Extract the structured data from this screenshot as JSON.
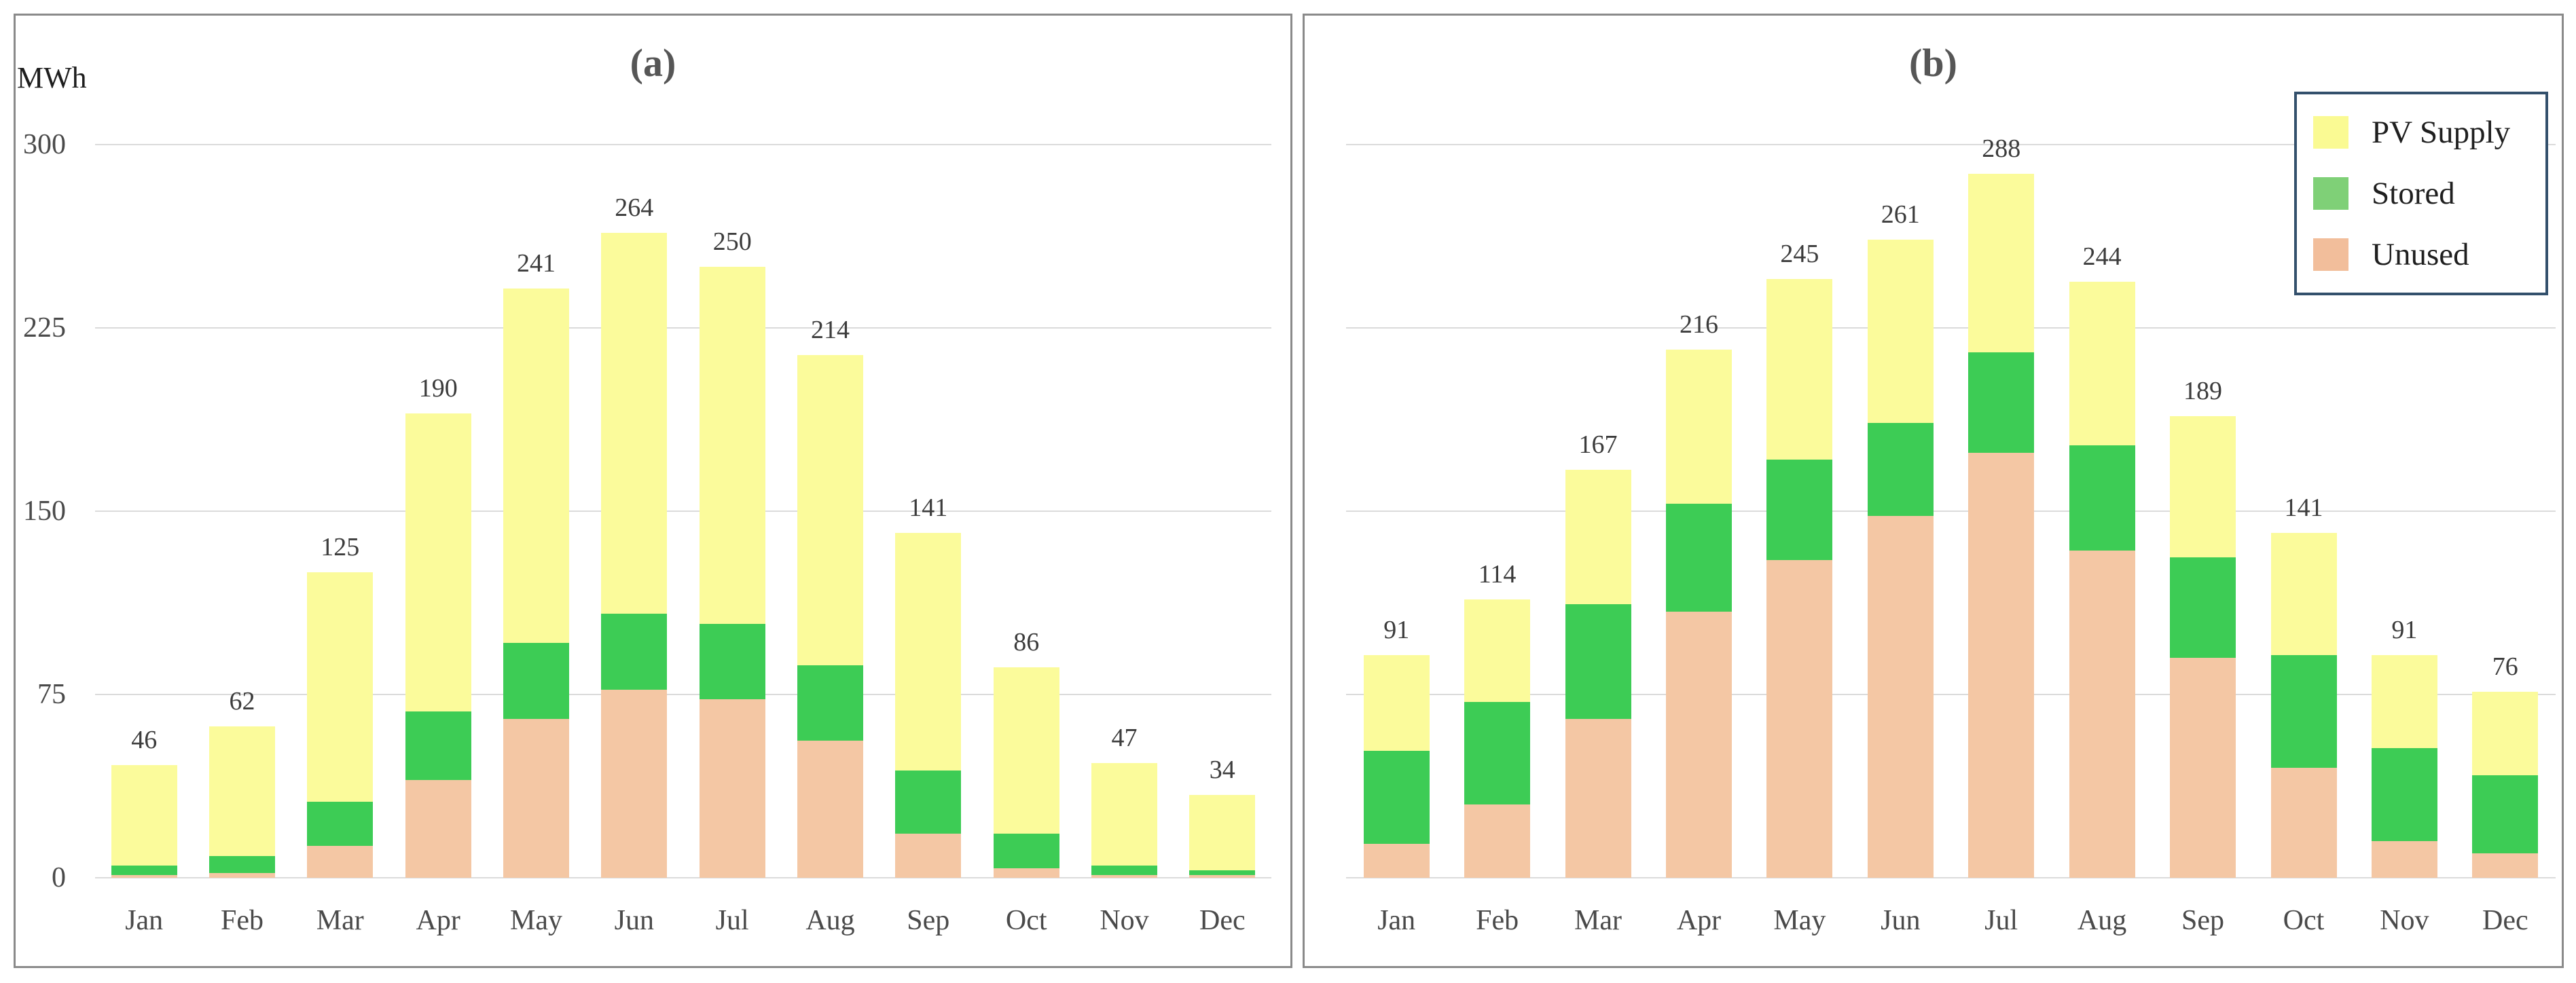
{
  "unit_label": "MWh",
  "chart_data": [
    {
      "type": "bar",
      "stacked": true,
      "title": "(a)",
      "ylabel": "MWh",
      "ylim": [
        0,
        300
      ],
      "yticks": [
        0,
        75,
        150,
        225,
        300
      ],
      "grid": true,
      "show_y_tick_labels": true,
      "categories": [
        "Jan",
        "Feb",
        "Mar",
        "Apr",
        "May",
        "Jun",
        "Jul",
        "Aug",
        "Sep",
        "Oct",
        "Nov",
        "Dec"
      ],
      "series": [
        {
          "name": "Unused",
          "color": "#F4C7A4",
          "values": [
            1,
            2,
            13,
            40,
            65,
            77,
            73,
            56,
            18,
            4,
            1,
            1
          ]
        },
        {
          "name": "Stored",
          "color": "#3DCC55",
          "values": [
            4,
            7,
            18,
            28,
            31,
            31,
            31,
            31,
            26,
            14,
            4,
            2
          ]
        },
        {
          "name": "PV Supply",
          "color": "#FBFB9B",
          "values": [
            41,
            53,
            94,
            122,
            145,
            156,
            146,
            127,
            97,
            68,
            42,
            31
          ]
        }
      ],
      "totals": [
        46,
        62,
        125,
        190,
        241,
        264,
        250,
        214,
        141,
        86,
        47,
        34
      ]
    },
    {
      "type": "bar",
      "stacked": true,
      "title": "(b)",
      "ylabel": "",
      "ylim": [
        0,
        300
      ],
      "yticks": [
        0,
        75,
        150,
        225,
        300
      ],
      "grid": true,
      "show_y_tick_labels": false,
      "categories": [
        "Jan",
        "Feb",
        "Mar",
        "Apr",
        "May",
        "Jun",
        "Jul",
        "Aug",
        "Sep",
        "Oct",
        "Nov",
        "Dec"
      ],
      "series": [
        {
          "name": "Unused",
          "color": "#F4C7A4",
          "values": [
            14,
            30,
            65,
            109,
            130,
            148,
            174,
            134,
            90,
            45,
            15,
            10
          ]
        },
        {
          "name": "Stored",
          "color": "#3DCC55",
          "values": [
            38,
            42,
            47,
            44,
            41,
            38,
            41,
            43,
            41,
            46,
            38,
            32
          ]
        },
        {
          "name": "PV Supply",
          "color": "#FBFB9B",
          "values": [
            39,
            42,
            55,
            63,
            74,
            75,
            73,
            67,
            58,
            50,
            38,
            34
          ]
        }
      ],
      "totals": [
        91,
        114,
        167,
        216,
        245,
        261,
        288,
        244,
        189,
        141,
        91,
        76
      ]
    }
  ],
  "legend": {
    "position": "top-right",
    "entries": [
      {
        "label": "PV Supply",
        "color": "#FAFA93"
      },
      {
        "label": "Stored",
        "color": "#7FD077"
      },
      {
        "label": "Unused",
        "color": "#F2BE9B"
      }
    ]
  },
  "colors": {
    "grid": "#DBDBDB",
    "panel_border": "#8A8A8A",
    "legend_border": "#33506C",
    "title_text": "#565656",
    "label_text": "#3C3C3C",
    "axis_text": "#4A4A4A"
  }
}
